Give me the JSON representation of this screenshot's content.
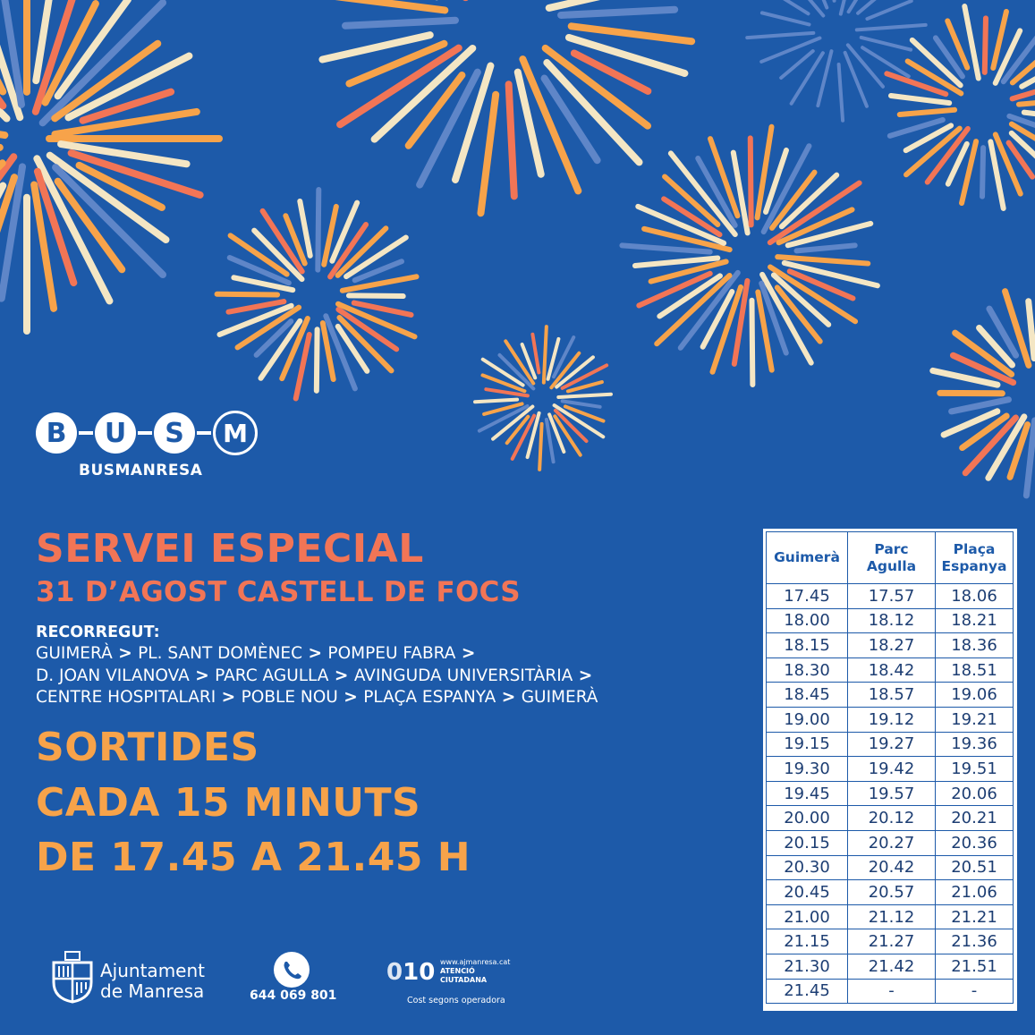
{
  "brand": {
    "logo_letters": [
      "B",
      "U",
      "S",
      "M"
    ],
    "logo_name": "BUSMANRESA"
  },
  "headline": {
    "title": "SERVEI ESPECIAL",
    "subtitle": "31 D’AGOST CASTELL DE FOCS"
  },
  "route": {
    "label": "RECORREGUT",
    "lines": [
      [
        "GUIMERÀ",
        " > ",
        "PL. SANT DOMÈNEC",
        " > ",
        "POMPEU FABRA",
        " >"
      ],
      [
        "D. JOAN VILANOVA",
        " > ",
        "PARC AGULLA",
        " >  ",
        "AVINGUDA UNIVERSITÀRIA",
        " >"
      ],
      [
        "CENTRE HOSPITALARI",
        " > ",
        "POBLE NOU",
        " >  ",
        "PLAÇA ESPANYA",
        " > ",
        "GUIMERÀ"
      ]
    ]
  },
  "departures": {
    "line1": "SORTIDES",
    "line2": "CADA 15 MINUTS",
    "line3": "DE 17.45 A 21.45 H"
  },
  "timetable": {
    "headers": [
      "Guimerà",
      "Parc\nAgulla",
      "Plaça\nEspanya"
    ],
    "rows": [
      [
        "17.45",
        "17.57",
        "18.06"
      ],
      [
        "18.00",
        "18.12",
        "18.21"
      ],
      [
        "18.15",
        "18.27",
        "18.36"
      ],
      [
        "18.30",
        "18.42",
        "18.51"
      ],
      [
        "18.45",
        "18.57",
        "19.06"
      ],
      [
        "19.00",
        "19.12",
        "19.21"
      ],
      [
        "19.15",
        "19.27",
        "19.36"
      ],
      [
        "19.30",
        "19.42",
        "19.51"
      ],
      [
        "19.45",
        "19.57",
        "20.06"
      ],
      [
        "20.00",
        "20.12",
        "20.21"
      ],
      [
        "20.15",
        "20.27",
        "20.36"
      ],
      [
        "20.30",
        "20.42",
        "20.51"
      ],
      [
        "20.45",
        "20.57",
        "21.06"
      ],
      [
        "21.00",
        "21.12",
        "21.21"
      ],
      [
        "21.15",
        "21.27",
        "21.36"
      ],
      [
        "21.30",
        "21.42",
        "21.51"
      ],
      [
        "21.45",
        "-",
        "-"
      ]
    ]
  },
  "footer": {
    "council_line1": "Ajuntament",
    "council_line2": "de Manresa",
    "whatsapp_number": "644 069 801",
    "phone_010": "010",
    "web": "www.ajmanresa.cat",
    "atencio_line1": "ATENCIÓ",
    "atencio_line2": "CIUTADANA",
    "cost_note": "Cost segons operadora"
  },
  "colors": {
    "background": "#1d5aa9",
    "coral": "#f27556",
    "orange": "#f7a34a",
    "cream": "#f4e6c4",
    "light_blue": "#5f86c8",
    "white": "#ffffff"
  },
  "icons": {
    "whatsapp": "whatsapp-icon",
    "crest": "manresa-crest-icon",
    "decoration": "fireworks-decoration"
  }
}
